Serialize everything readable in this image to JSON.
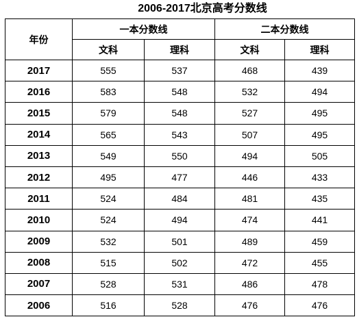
{
  "title": "2006-2017北京高考分数线",
  "table": {
    "year_header": "年份",
    "groups": [
      "一本分数线",
      "二本分数线"
    ],
    "subheaders": [
      "文科",
      "理科",
      "文科",
      "理科"
    ],
    "rows": [
      [
        2017,
        555,
        537,
        468,
        439
      ],
      [
        2016,
        583,
        548,
        532,
        494
      ],
      [
        2015,
        579,
        548,
        527,
        495
      ],
      [
        2014,
        565,
        543,
        507,
        495
      ],
      [
        2013,
        549,
        550,
        494,
        505
      ],
      [
        2012,
        495,
        477,
        446,
        433
      ],
      [
        2011,
        524,
        484,
        481,
        435
      ],
      [
        2010,
        524,
        494,
        474,
        441
      ],
      [
        2009,
        532,
        501,
        489,
        459
      ],
      [
        2008,
        515,
        502,
        472,
        455
      ],
      [
        2007,
        528,
        531,
        486,
        478
      ],
      [
        2006,
        516,
        528,
        476,
        476
      ]
    ]
  }
}
